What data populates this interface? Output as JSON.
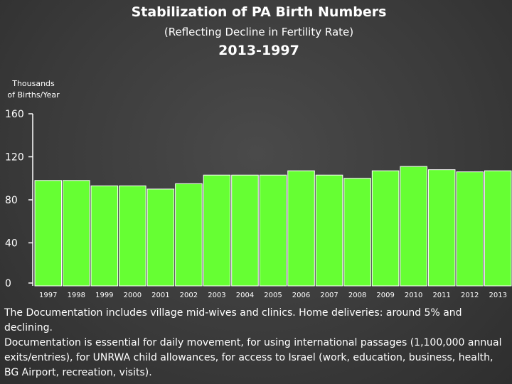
{
  "chart_data": {
    "type": "bar",
    "title": "Stabilization of PA Birth Numbers",
    "subtitle": "(Reflecting Decline in Fertility Rate)",
    "years_title": "2013-1997",
    "ylabel": "Thousands of Births/Year",
    "ylabel_lines": [
      "Thousands",
      "of Births/Year"
    ],
    "categories": [
      "1997",
      "1998",
      "1999",
      "2000",
      "2001",
      "2002",
      "2003",
      "2004",
      "2005",
      "2006",
      "2007",
      "2008",
      "2009",
      "2010",
      "2011",
      "2012",
      "2013"
    ],
    "values": [
      98,
      98,
      93,
      93,
      90,
      95,
      103,
      103,
      103,
      107,
      103,
      100,
      107,
      111,
      108,
      106,
      107
    ],
    "yticks": [
      0,
      40,
      80,
      120,
      160
    ],
    "ylim": [
      0,
      160
    ],
    "grid": false,
    "bar_color": "#66ff33"
  },
  "note": {
    "line1": "The Documentation includes village mid-wives and clinics. Home deliveries: around 5% and declining.",
    "line2": "Documentation is essential for daily movement, for using international passages (1,100,000 annual exits/entries), for UNRWA child allowances, for access to Israel (work, education, business, health, BG Airport, recreation, visits)."
  }
}
